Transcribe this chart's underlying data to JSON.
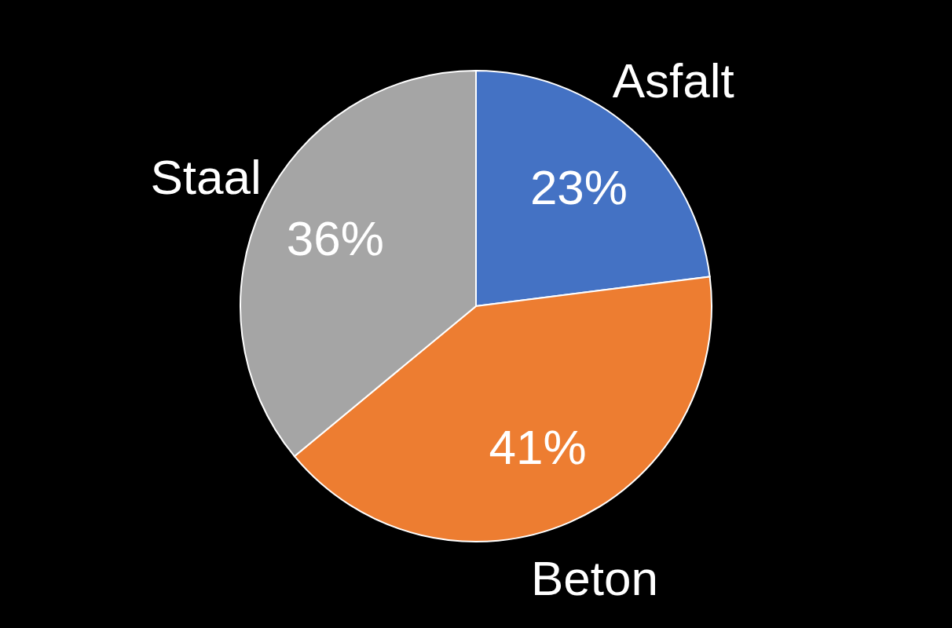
{
  "chart_data": {
    "type": "pie",
    "categories": [
      "Asfalt",
      "Beton",
      "Staal"
    ],
    "values": [
      23,
      41,
      36
    ],
    "colors": [
      "#4472c4",
      "#ed7d31",
      "#a5a5a5"
    ],
    "value_labels": [
      "23%",
      "41%",
      "36%"
    ]
  }
}
